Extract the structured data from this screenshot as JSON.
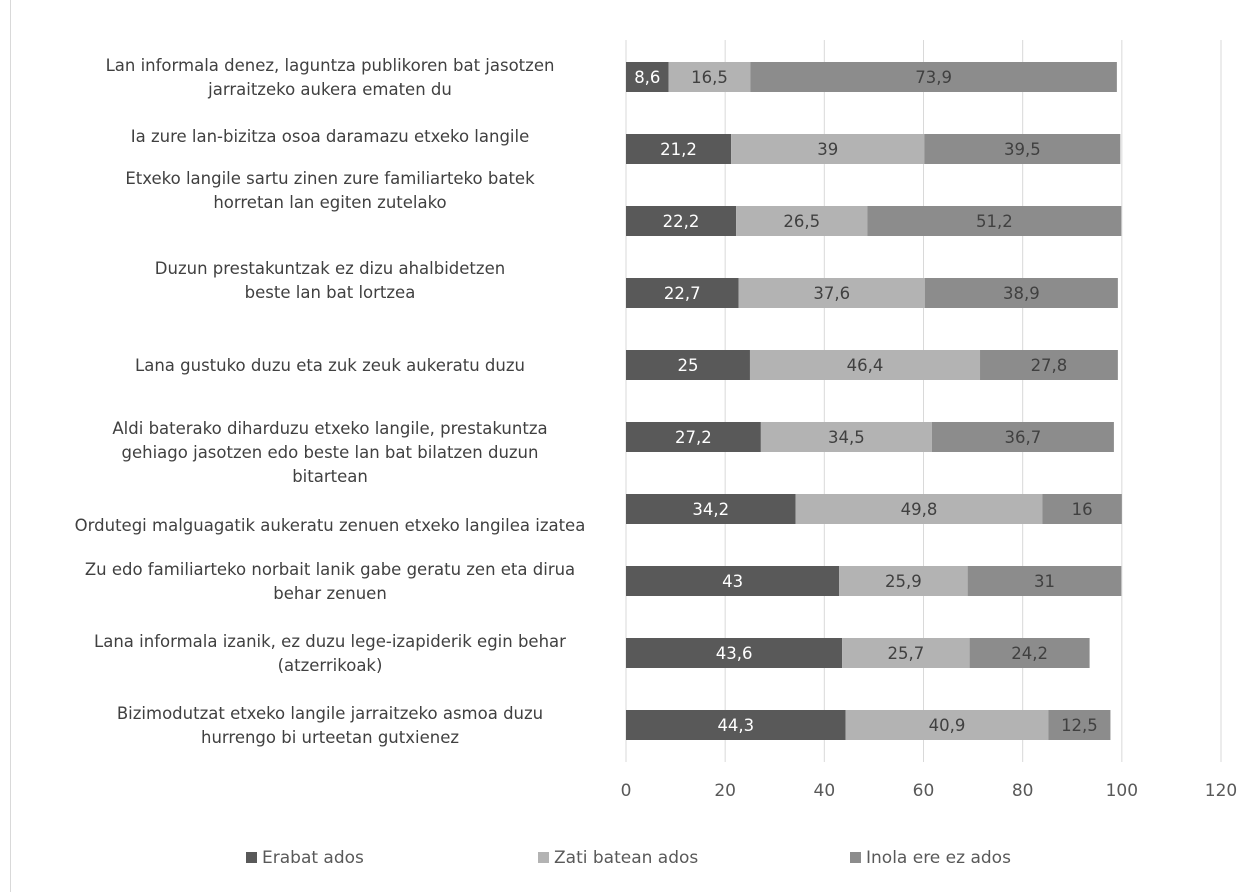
{
  "chart_data": {
    "type": "bar",
    "orientation": "horizontal",
    "stacked": true,
    "title": "",
    "xlabel": "",
    "ylabel": "",
    "xlim": [
      0,
      120
    ],
    "xticks": [
      0,
      20,
      40,
      60,
      80,
      100,
      120
    ],
    "grid": true,
    "legend_position": "bottom",
    "categories": [
      [
        "Lan informala denez, laguntza publikoren bat jasotzen",
        "jarraitzeko aukera ematen du"
      ],
      [
        "Ia zure lan-bizitza osoa daramazu etxeko langile"
      ],
      [
        "Etxeko langile sartu zinen zure familiarteko batek",
        "horretan lan egiten zutelako"
      ],
      [
        "Duzun prestakuntzak ez dizu ahalbidetzen",
        "beste lan bat lortzea"
      ],
      [
        "Lana gustuko duzu eta zuk zeuk aukeratu duzu"
      ],
      [
        "Aldi baterako diharduzu etxeko langile, prestakuntza",
        "gehiago jasotzen edo beste lan bat bilatzen duzun",
        "bitartean"
      ],
      [
        "Ordutegi malguagatik aukeratu zenuen etxeko langilea izatea"
      ],
      [
        "Zu edo familiarteko norbait lanik gabe geratu zen eta dirua",
        "behar zenuen"
      ],
      [
        "Lana informala izanik, ez duzu lege-izapiderik egin behar",
        "(atzerrikoak)"
      ],
      [
        "Bizimodutzat etxeko langile jarraitzeko asmoa duzu",
        "hurrengo bi urteetan gutxienez"
      ]
    ],
    "series": [
      {
        "name": "Erabat ados",
        "color": "#595959",
        "label_color": "#ffffff",
        "values": [
          8.6,
          21.2,
          22.2,
          22.7,
          25,
          27.2,
          34.2,
          43,
          43.6,
          44.3
        ],
        "labels": [
          "8,6",
          "21,2",
          "22,2",
          "22,7",
          "25",
          "27,2",
          "34,2",
          "43",
          "43,6",
          "44,3"
        ]
      },
      {
        "name": "Zati batean ados",
        "color": "#b3b3b3",
        "label_color": "#404040",
        "values": [
          16.5,
          39,
          26.5,
          37.6,
          46.4,
          34.5,
          49.8,
          25.9,
          25.7,
          40.9
        ],
        "labels": [
          "16,5",
          "39",
          "26,5",
          "37,6",
          "46,4",
          "34,5",
          "49,8",
          "25,9",
          "25,7",
          "40,9"
        ]
      },
      {
        "name": "Inola ere ez ados",
        "color": "#8c8c8c",
        "label_color": "#404040",
        "values": [
          73.9,
          39.5,
          51.2,
          38.9,
          27.8,
          36.7,
          16,
          31,
          24.2,
          12.5
        ],
        "labels": [
          "73,9",
          "39,5",
          "51,2",
          "38,9",
          "27,8",
          "36,7",
          "16",
          "31",
          "24,2",
          "12,5"
        ]
      }
    ]
  }
}
